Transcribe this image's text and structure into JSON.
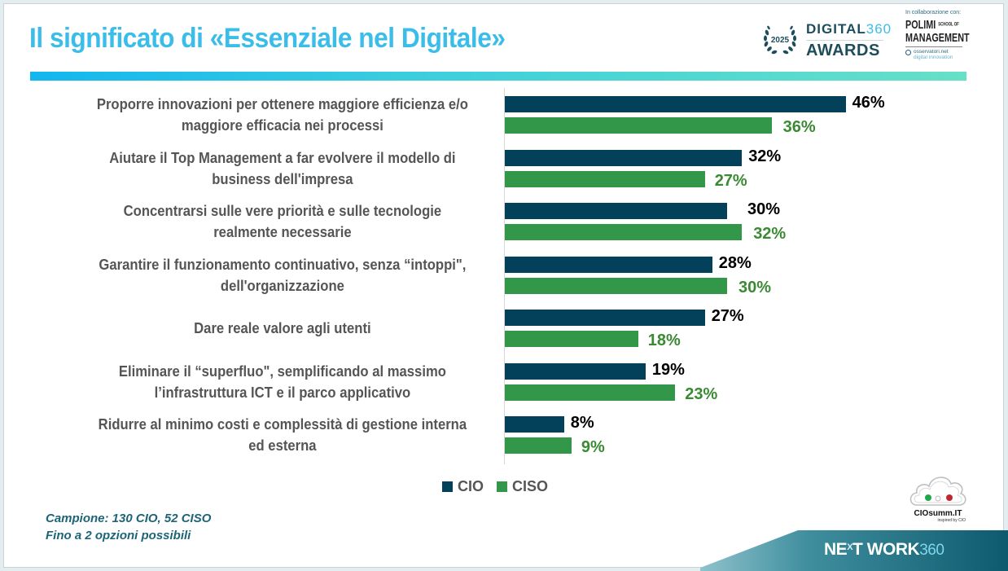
{
  "slide": {
    "title": "Il significato di «Essenziale nel Digitale»",
    "brand_colors": {
      "title": "#3bbdea",
      "accent_gradient_start": "#13b6ee",
      "accent_gradient_end": "#66e0c6",
      "cio": "#03415a",
      "ciso": "#339749"
    }
  },
  "logos": {
    "awards": {
      "year": "2025",
      "line1_word": "DIGITAL",
      "line1_num": "360",
      "line2": "AWARDS"
    },
    "collaboration": {
      "caption": "In collaborazione con:",
      "polimi_line1": "POLIMI",
      "polimi_school": "SCHOOL OF",
      "polimi_line2": "MANAGEMENT",
      "oss_line1": "osservatori.net",
      "oss_line2": "digital innovation"
    },
    "ciosumm": {
      "name": "CIOsumm.IT",
      "tagline": "inspired by CIO"
    },
    "network": {
      "word_a": "NE",
      "word_x": "X",
      "word_b": "T WORK",
      "num": "360"
    }
  },
  "chart_data": {
    "type": "bar",
    "orientation": "horizontal",
    "title": "Il significato di «Essenziale nel Digitale»",
    "xlabel": "",
    "ylabel": "",
    "xlim": [
      0,
      50
    ],
    "grid": false,
    "legend_position": "bottom",
    "value_format": "percent",
    "categories": [
      "Proporre innovazioni per ottenere maggiore efficienza e/o maggiore efficacia nei processi",
      "Aiutare il Top Management a far evolvere il modello di business dell'impresa",
      "Concentrarsi sulle vere priorità e sulle tecnologie realmente necessarie",
      "Garantire il funzionamento continuativo, senza “intoppi\", dell'organizzazione",
      "Dare reale valore agli utenti",
      "Eliminare il “superfluo\",  semplificando al massimo l’infrastruttura ICT e il parco applicativo",
      "Ridurre al minimo costi e complessità di gestione interna ed esterna"
    ],
    "category_lines": [
      [
        "Proporre innovazioni per ottenere maggiore efficienza e/o",
        "maggiore efficacia nei processi"
      ],
      [
        "Aiutare il Top Management a far evolvere il modello di",
        "business dell'impresa"
      ],
      [
        "Concentrarsi sulle vere priorità e sulle tecnologie",
        "realmente necessarie"
      ],
      [
        "Garantire il funzionamento continuativo, senza “intoppi\",",
        "dell'organizzazione"
      ],
      [
        "Dare reale valore agli utenti"
      ],
      [
        "Eliminare il “superfluo\",  semplificando al massimo",
        "l’infrastruttura ICT e il parco applicativo"
      ],
      [
        "Ridurre al minimo costi e complessità di gestione interna",
        "ed esterna"
      ]
    ],
    "series": [
      {
        "name": "CIO",
        "color": "#03415a",
        "label_color": "#000000",
        "values": [
          46,
          32,
          30,
          28,
          27,
          19,
          8
        ]
      },
      {
        "name": "CISO",
        "color": "#339749",
        "label_color": "#3a8a34",
        "values": [
          36,
          27,
          32,
          30,
          18,
          23,
          9
        ]
      }
    ],
    "labels": {
      "CIO": [
        "46%",
        "32%",
        "30%",
        "28%",
        "27%",
        "19%",
        "8%"
      ],
      "CISO": [
        "36%",
        "27%",
        "32%",
        "30%",
        "18%",
        "23%",
        "9%"
      ]
    }
  },
  "legend": {
    "items": [
      {
        "label": "CIO",
        "color": "#03415a"
      },
      {
        "label": "CISO",
        "color": "#339749"
      }
    ]
  },
  "footnote": {
    "line1": "Campione: 130 CIO, 52 CISO",
    "line2": "Fino a 2 opzioni possibili"
  }
}
